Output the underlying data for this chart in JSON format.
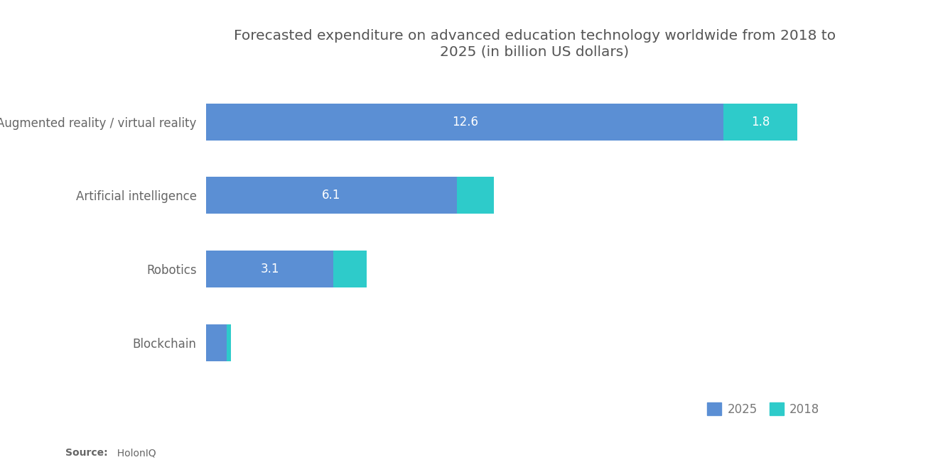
{
  "title": "Forecasted expenditure on advanced education technology worldwide from 2018 to\n2025 (in billion US dollars)",
  "categories": [
    "Augmented reality / virtual reality",
    "Artificial intelligence",
    "Robotics",
    "Blockchain"
  ],
  "values_2025": [
    12.6,
    6.1,
    3.1,
    0.5
  ],
  "values_2018": [
    1.8,
    0.9,
    0.8,
    0.1
  ],
  "labels_2025": [
    "12.6",
    "6.1",
    "3.1",
    ""
  ],
  "labels_2018": [
    "1.8",
    "",
    "",
    ""
  ],
  "color_2025": "#5B8FD4",
  "color_2018": "#2ECBCA",
  "background_color": "#ffffff",
  "title_fontsize": 14.5,
  "label_fontsize": 12,
  "tick_fontsize": 12,
  "source_bold": "Source:",
  "source_rest": "  HolonIQ",
  "legend_labels": [
    "2025",
    "2018"
  ],
  "bar_height": 0.5,
  "xlim": [
    0,
    16
  ]
}
